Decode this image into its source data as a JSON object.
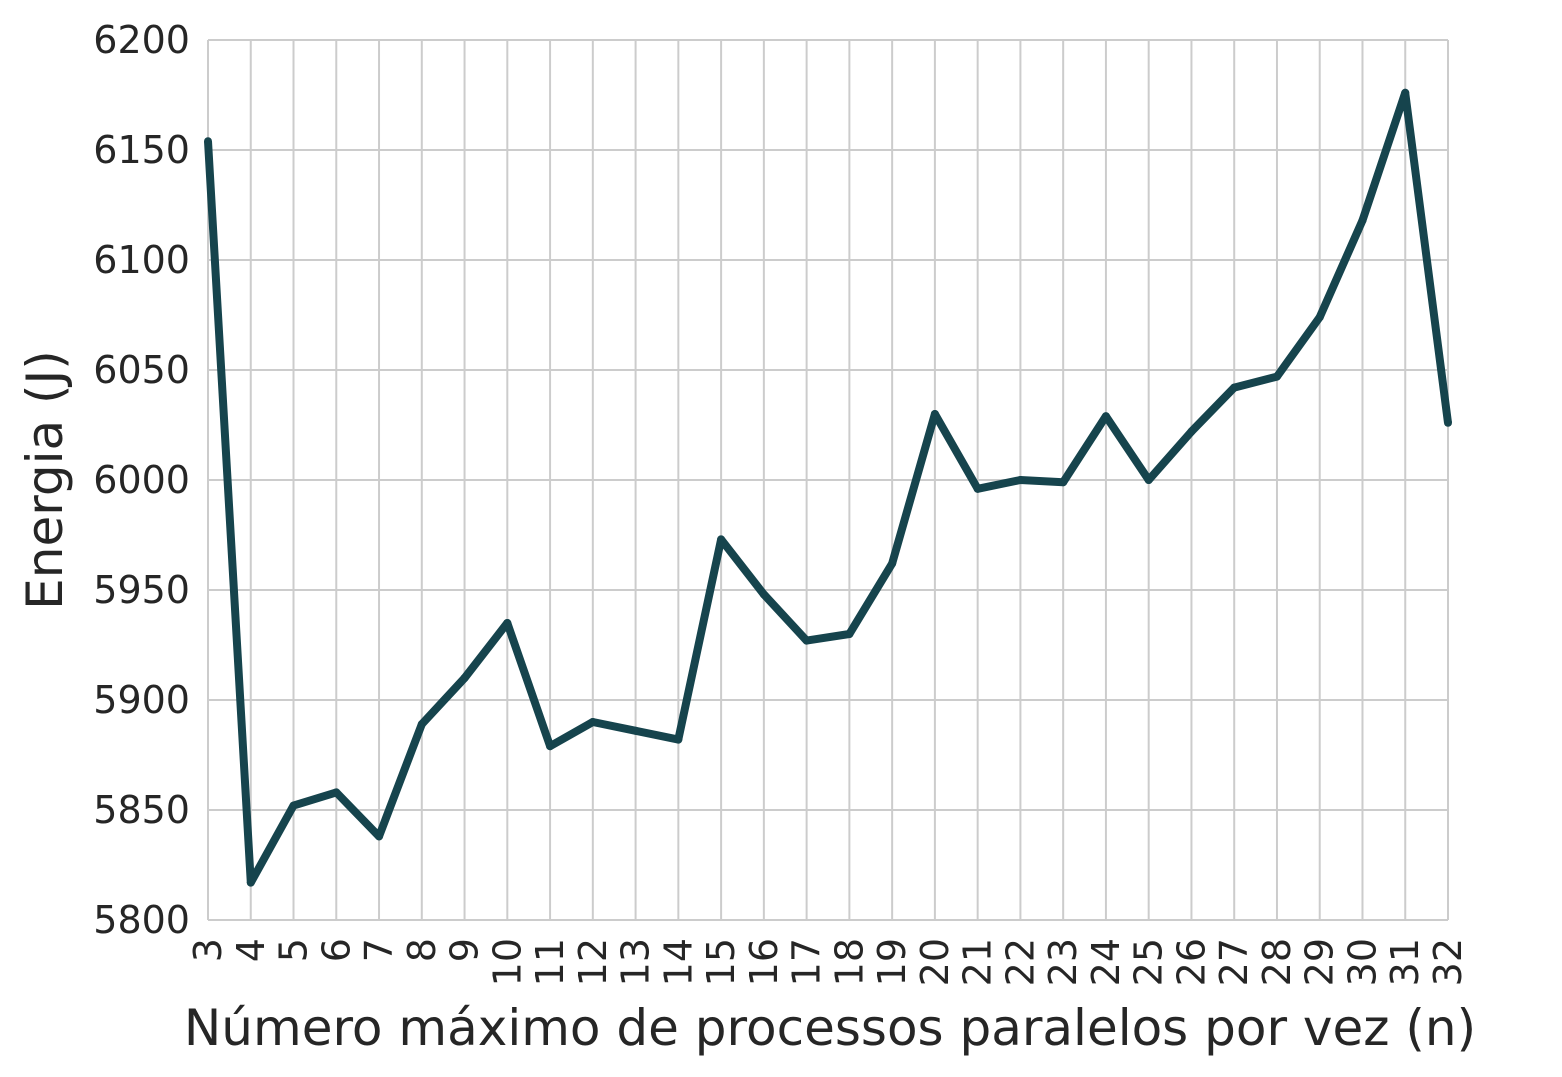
{
  "chart_data": {
    "type": "line",
    "xlabel": "Número máximo de processos paralelos por vez (n)",
    "ylabel": "Energia (J)",
    "ylim": [
      5800,
      6200
    ],
    "yticks": [
      5800,
      5850,
      5900,
      5950,
      6000,
      6050,
      6100,
      6150,
      6200
    ],
    "grid": true,
    "line_color": "#16444d",
    "grid_color": "#cccccc",
    "categories": [
      "3",
      "4",
      "5",
      "6",
      "7",
      "8",
      "9",
      "10",
      "11",
      "12",
      "13",
      "14",
      "15",
      "16",
      "17",
      "18",
      "19",
      "20",
      "21",
      "22",
      "23",
      "24",
      "25",
      "26",
      "27",
      "28",
      "29",
      "30",
      "31",
      "32"
    ],
    "series": [
      {
        "values": [
          6154,
          5817,
          5852,
          5858,
          5838,
          5889,
          5910,
          5935,
          5879,
          5890,
          5886,
          5882,
          5973,
          5948,
          5927,
          5930,
          5962,
          6030,
          5996,
          6000,
          5999,
          6029,
          6000,
          6022,
          6042,
          6047,
          6074,
          6118,
          6176,
          6026
        ]
      }
    ]
  }
}
